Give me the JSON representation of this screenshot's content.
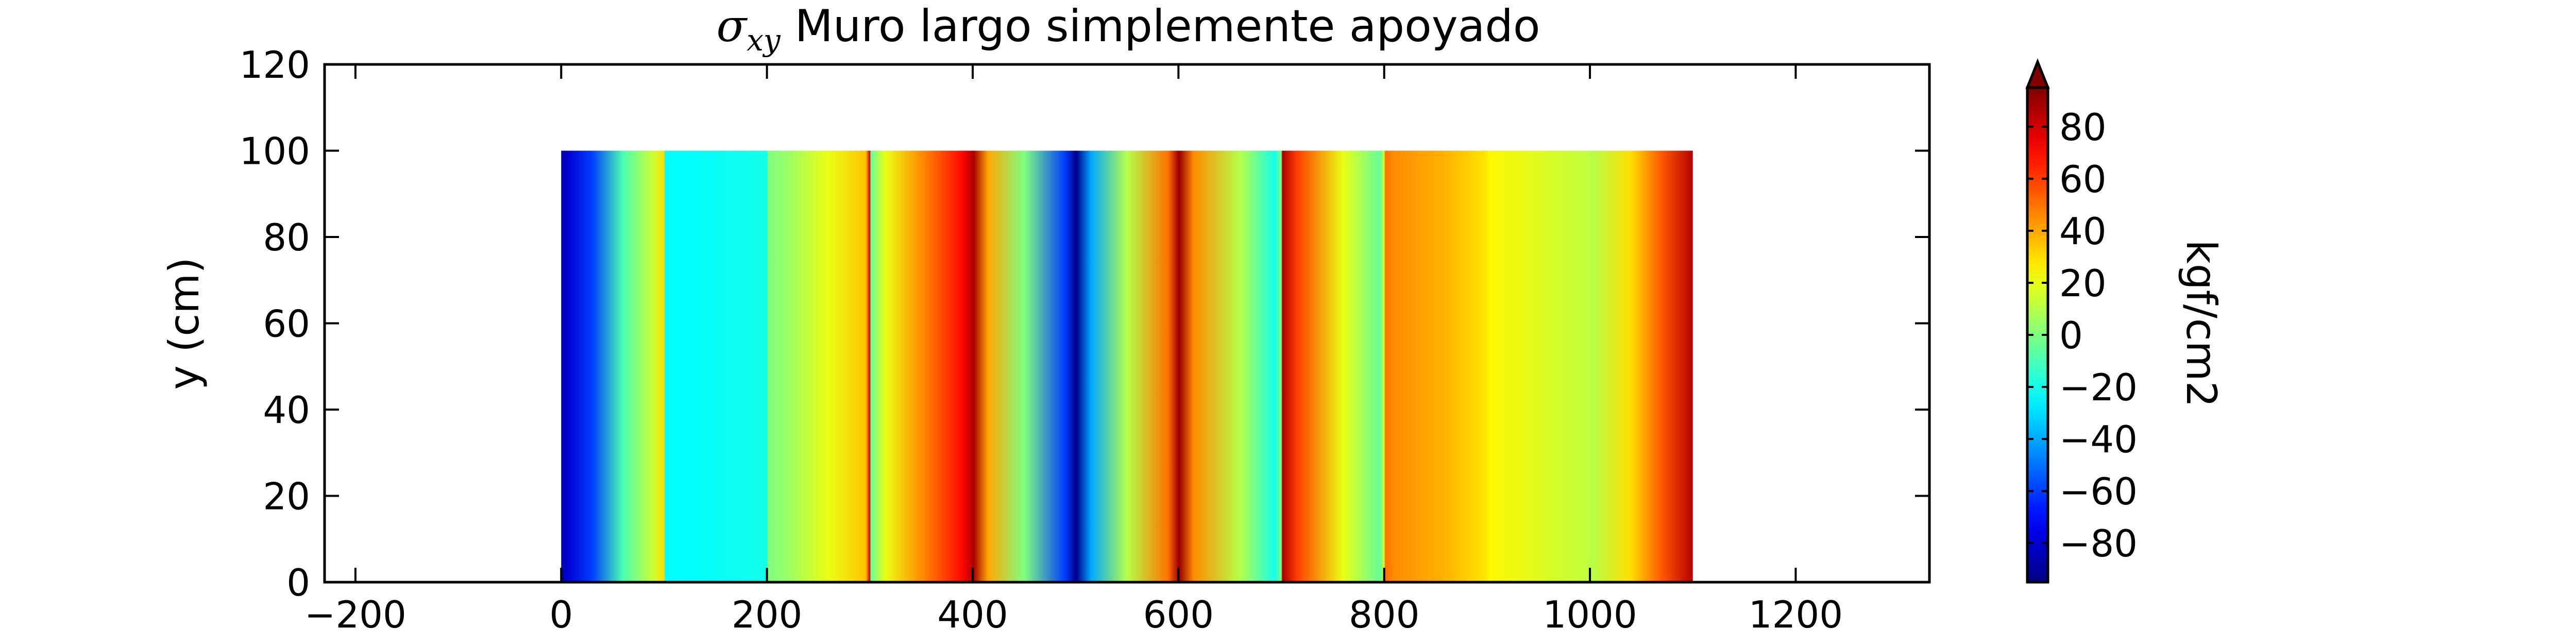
{
  "chart_data": {
    "type": "heatmap",
    "title": "Muro largo simplemente apoyado",
    "title_symbol": "σ",
    "title_symbol_sub": "xy",
    "xlabel": "",
    "ylabel": "y (cm)",
    "xlim": [
      -230,
      1330
    ],
    "ylim": [
      0,
      120
    ],
    "xticks": [
      -200,
      0,
      200,
      400,
      600,
      800,
      1000,
      1200
    ],
    "yticks": [
      0,
      20,
      40,
      60,
      80,
      100,
      120
    ],
    "colorbar": {
      "label": "kgf/cm2",
      "min": -95,
      "max": 95,
      "ticks": [
        -80,
        -60,
        -40,
        -20,
        0,
        20,
        40,
        60,
        80
      ],
      "extend": "max",
      "colormap": "jet"
    },
    "domain": {
      "x": [
        0,
        1100
      ],
      "y": [
        0,
        100
      ]
    },
    "field_profile": {
      "x": [
        0,
        6,
        30,
        60,
        90,
        100,
        101,
        112,
        200,
        201,
        220,
        260,
        296,
        300,
        301,
        315,
        350,
        390,
        400,
        401,
        415,
        450,
        490,
        500,
        501,
        515,
        550,
        590,
        600,
        601,
        615,
        660,
        694,
        700,
        701,
        715,
        760,
        796,
        800,
        801,
        810,
        860,
        900,
        901,
        1000,
        1001,
        1040,
        1070,
        1100
      ],
      "value": [
        -88,
        -80,
        -60,
        -10,
        15,
        30,
        -22,
        -24,
        -20,
        0,
        5,
        20,
        35,
        80,
        -5,
        20,
        45,
        70,
        85,
        88,
        40,
        0,
        -60,
        -92,
        -92,
        -40,
        10,
        50,
        88,
        90,
        45,
        10,
        -20,
        0,
        88,
        60,
        20,
        -5,
        15,
        50,
        45,
        38,
        28,
        25,
        12,
        10,
        30,
        55,
        85
      ]
    }
  }
}
